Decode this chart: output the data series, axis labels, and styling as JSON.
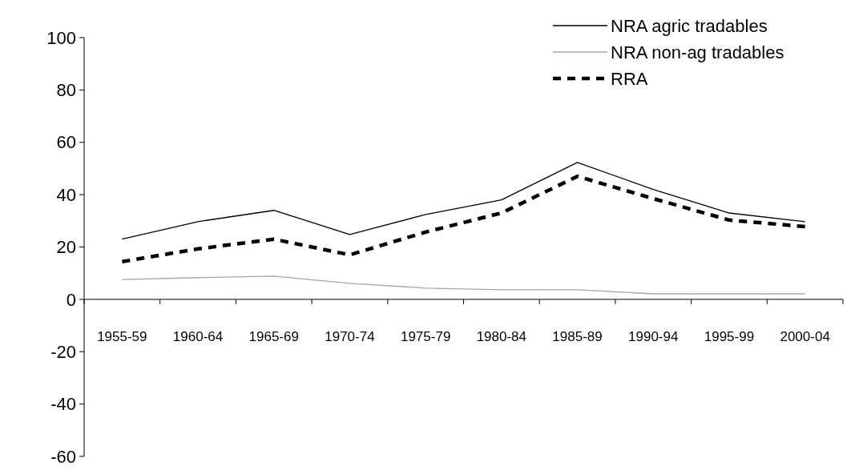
{
  "chart_data": {
    "type": "line",
    "categories": [
      "1955-59",
      "1960-64",
      "1965-69",
      "1970-74",
      "1975-79",
      "1980-84",
      "1985-89",
      "1990-94",
      "1995-99",
      "2000-04"
    ],
    "series": [
      {
        "name": "NRA agric tradables",
        "color": "#000000",
        "line_style": "solid",
        "values": [
          23,
          29.7,
          34,
          24.8,
          32.4,
          38,
          52.3,
          42,
          33,
          29.7
        ]
      },
      {
        "name": "NRA non-ag tradables",
        "color": "#a6a6a6",
        "line_style": "solid",
        "values": [
          7.6,
          8.3,
          8.9,
          6.1,
          4.3,
          3.7,
          3.7,
          2.1,
          2.1,
          2.1
        ]
      },
      {
        "name": "RRA",
        "color": "#000000",
        "line_style": "dashed",
        "values": [
          14.4,
          19.3,
          23,
          17,
          25.7,
          33,
          47,
          38.5,
          30.3,
          27.8
        ]
      }
    ],
    "ylim": [
      -60,
      100
    ],
    "yticks": [
      -60,
      -40,
      -20,
      0,
      20,
      40,
      60,
      80,
      100
    ],
    "grid": false,
    "legend": "top right",
    "marker": "none"
  }
}
